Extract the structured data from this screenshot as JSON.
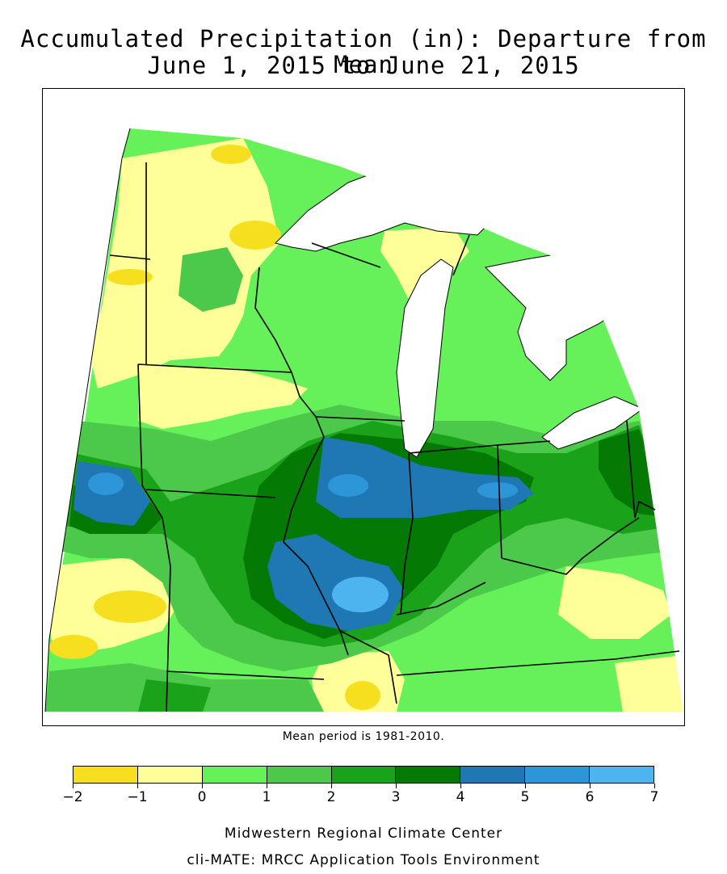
{
  "title": {
    "line1": "Accumulated Precipitation (in): Departure from Mean",
    "line2": "June 1, 2015 to June 21, 2015"
  },
  "mean_note": "Mean period is 1981-2010.",
  "legend": {
    "labels": [
      "−2",
      "−1",
      "0",
      "1",
      "2",
      "3",
      "4",
      "5",
      "6",
      "7"
    ],
    "colors": [
      "#f5df1e",
      "#ffff99",
      "#66f15a",
      "#4cc94a",
      "#1aa21a",
      "#047a04",
      "#1f78b4",
      "#2d96d8",
      "#4db4f0"
    ]
  },
  "map_colors": {
    "below_minus1": "#f5df1e",
    "minus1_0": "#ffff99",
    "zero_1": "#66f15a",
    "one_2": "#4cc94a",
    "two_3": "#1aa21a",
    "three_4": "#047a04",
    "four_5": "#1f78b4",
    "five_6": "#2d96d8",
    "water": "#ffffff"
  },
  "credits": {
    "line1": "Midwestern Regional Climate Center",
    "line2": "cli-MATE: MRCC Application Tools Environment"
  }
}
